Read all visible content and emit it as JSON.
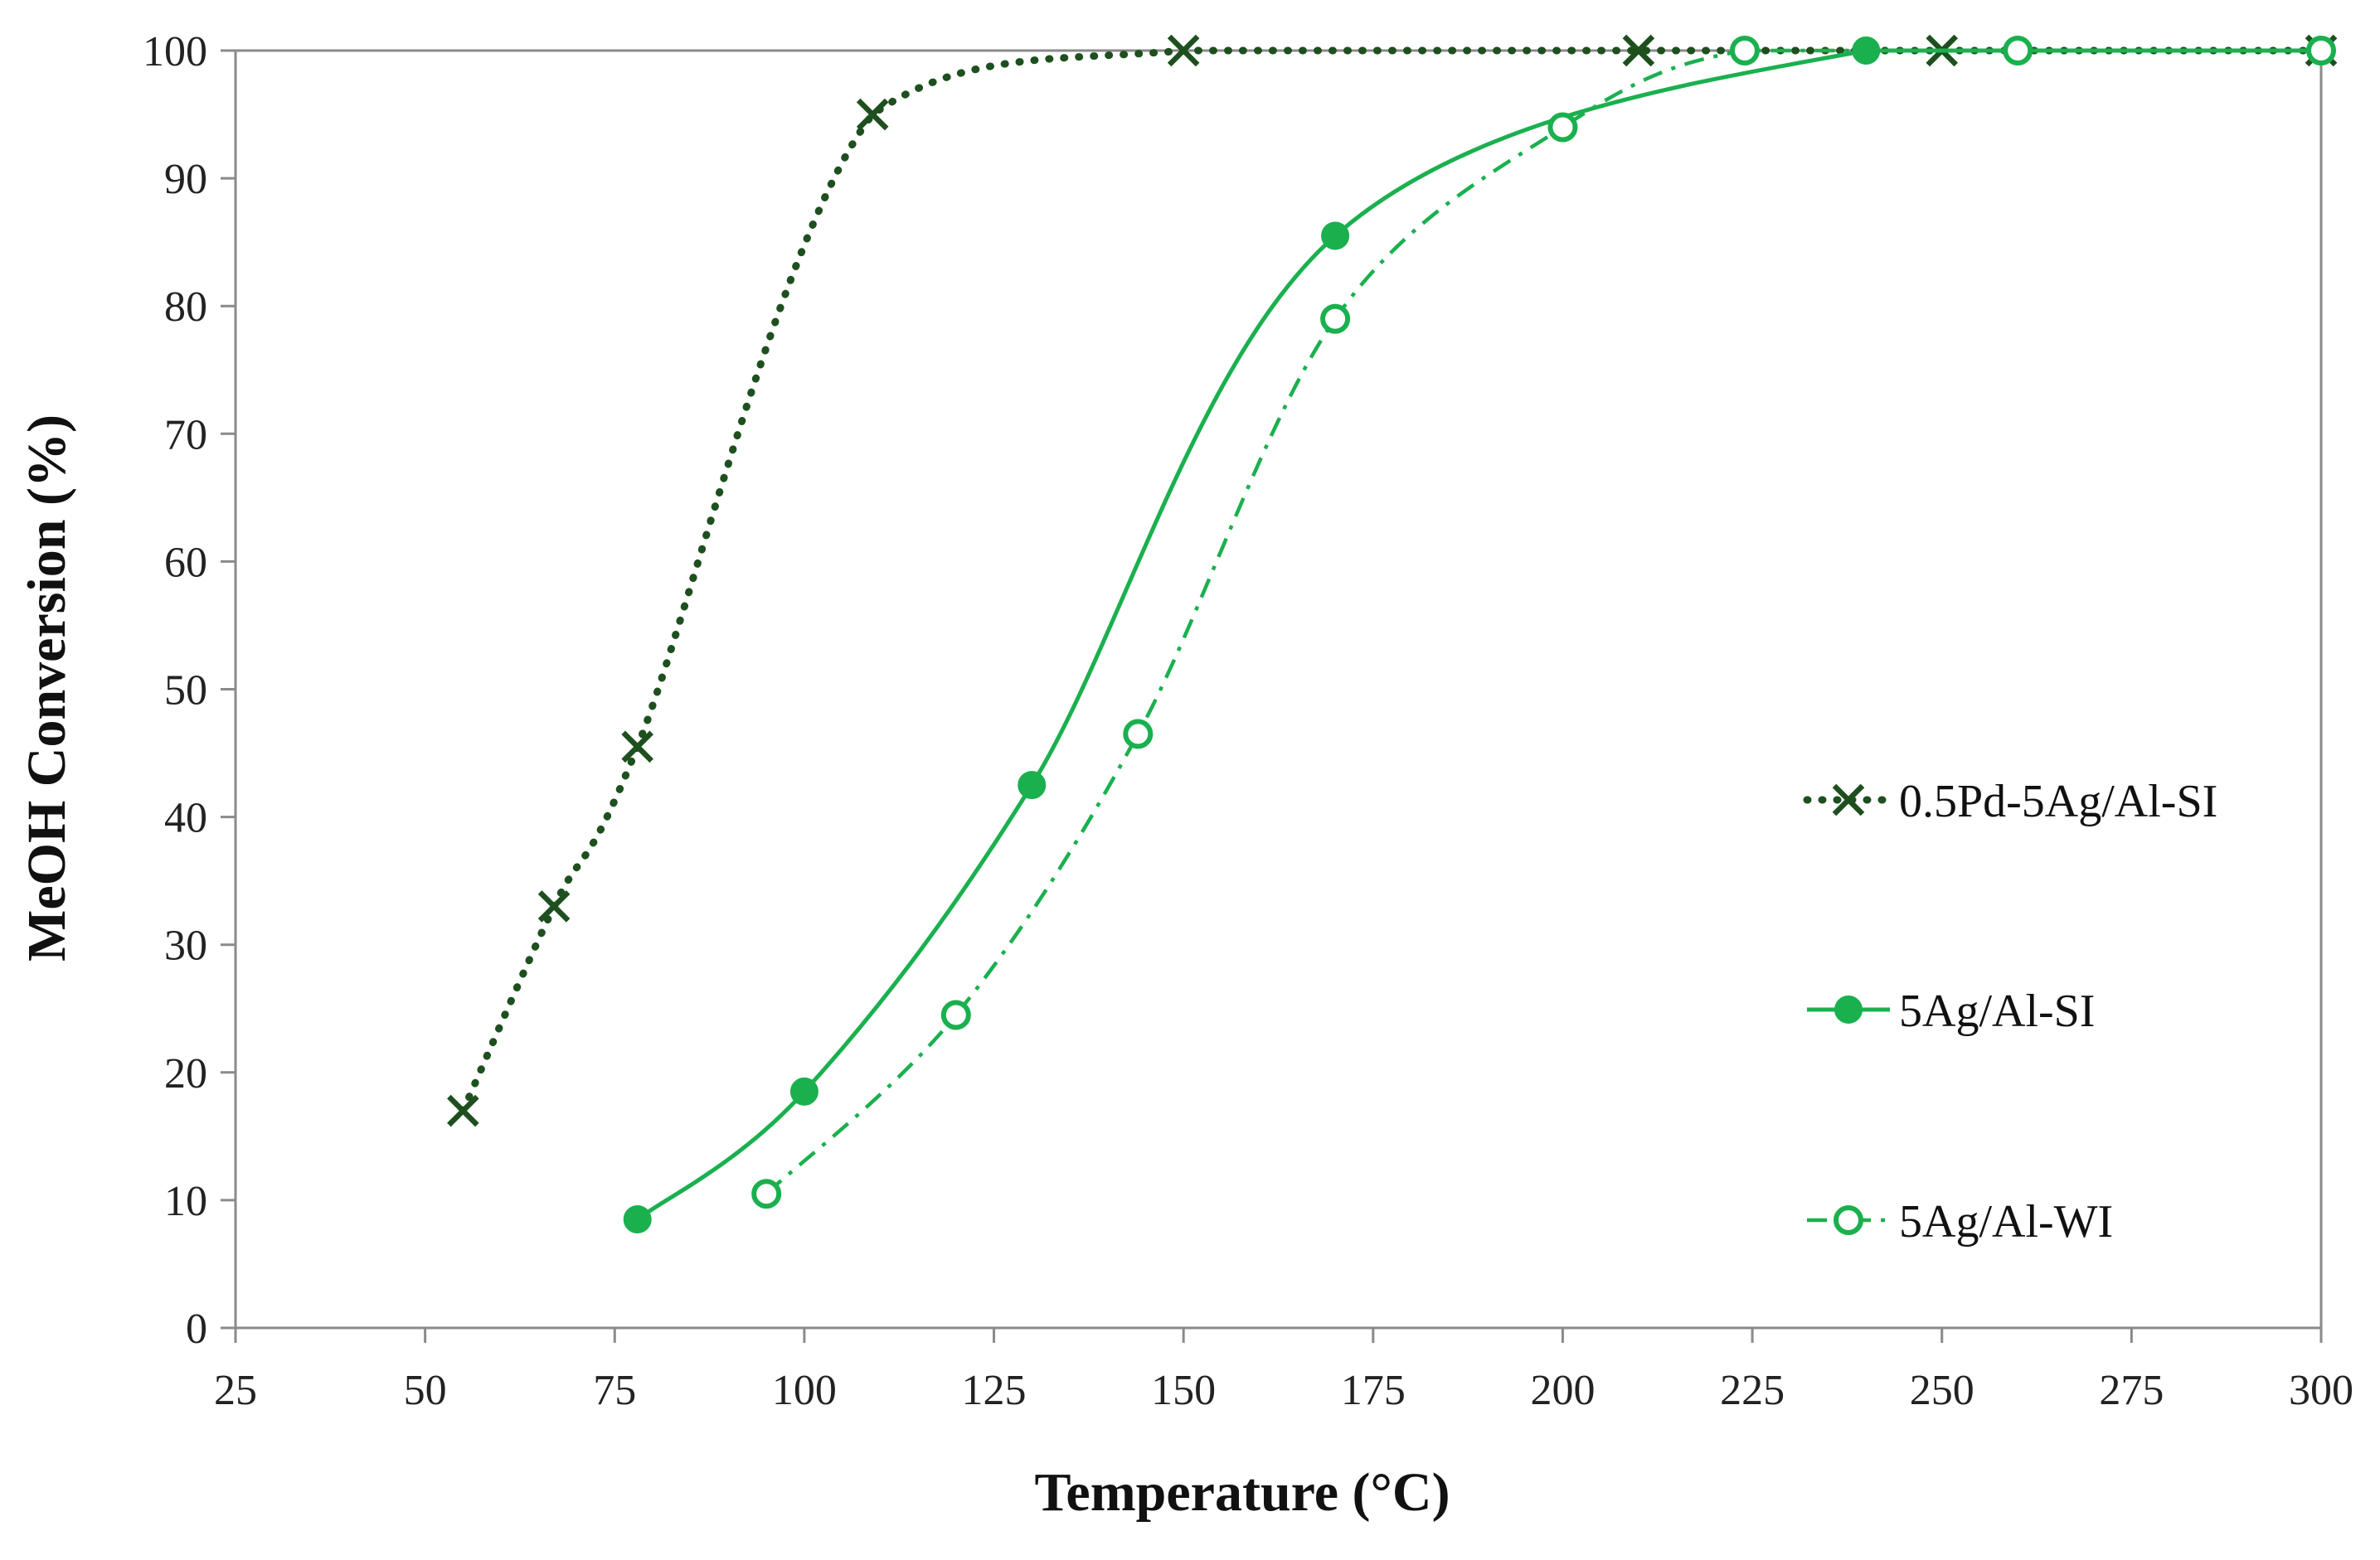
{
  "chart_data": {
    "type": "line",
    "title": "",
    "xlabel": "Temperature (°C)",
    "ylabel": "MeOH Conversion (%)",
    "xlim": [
      25,
      300
    ],
    "ylim": [
      0,
      100
    ],
    "xticks": [
      25,
      50,
      75,
      100,
      125,
      150,
      175,
      200,
      225,
      250,
      275,
      300
    ],
    "yticks": [
      0,
      10,
      20,
      30,
      40,
      50,
      60,
      70,
      80,
      90,
      100
    ],
    "grid": false,
    "legend_position": "right",
    "series": [
      {
        "name": "0.5Pd-5Ag/Al-SI",
        "color": "#1e4f1e",
        "line_style": "dotted",
        "marker": "x",
        "x": [
          55,
          67,
          78,
          109,
          150,
          210,
          250,
          300
        ],
        "y": [
          17,
          33,
          45.5,
          95,
          100,
          100,
          100,
          100
        ]
      },
      {
        "name": "5Ag/Al-SI",
        "color": "#1ab04e",
        "line_style": "solid",
        "marker": "filled-circle",
        "x": [
          78,
          100,
          130,
          170,
          240,
          300
        ],
        "y": [
          8.5,
          18.5,
          42.5,
          85.5,
          100,
          100
        ]
      },
      {
        "name": "5Ag/Al-WI",
        "color": "#1ab04e",
        "line_style": "dash-dot",
        "marker": "open-circle",
        "x": [
          95,
          120,
          144,
          170,
          200,
          224,
          260,
          300
        ],
        "y": [
          10.5,
          24.5,
          46.5,
          79,
          94,
          100,
          100,
          100
        ]
      }
    ]
  }
}
